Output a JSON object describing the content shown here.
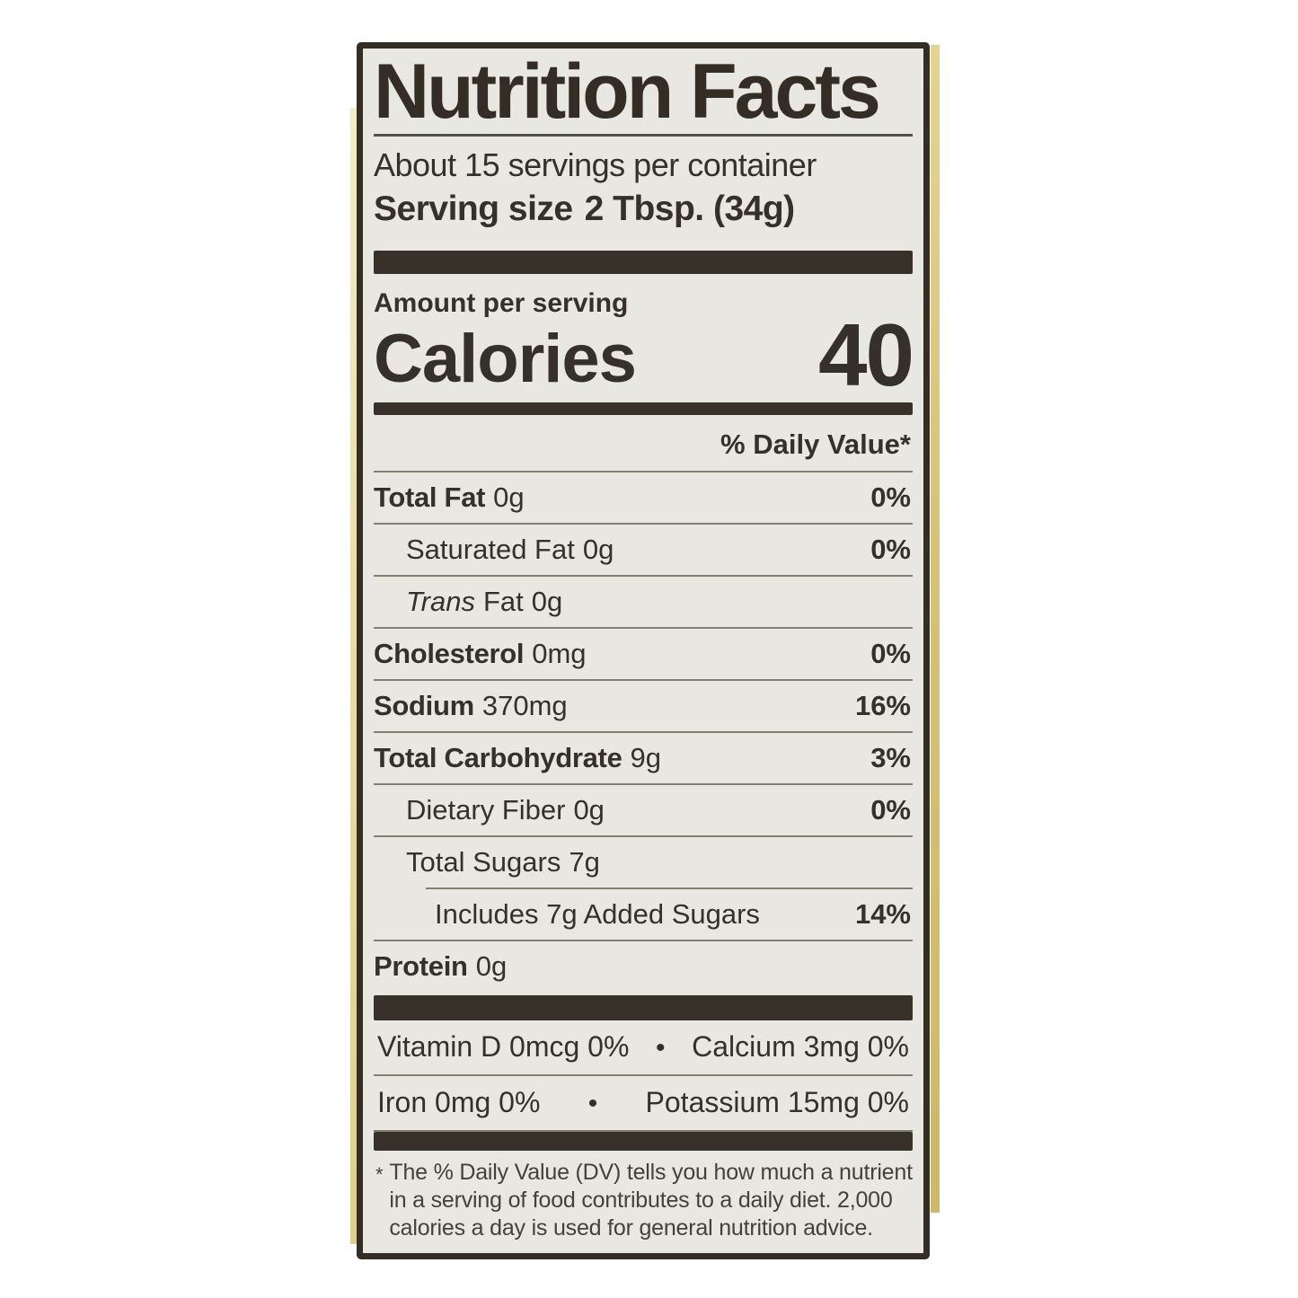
{
  "label": {
    "title": "Nutrition Facts",
    "servings_per_container": "About 15 servings per container",
    "serving_size_label": "Serving size",
    "serving_size_value": "2 Tbsp. (34g)",
    "amount_per_serving": "Amount per serving",
    "calories_label": "Calories",
    "calories_value": "40",
    "daily_value_header": "% Daily Value*",
    "nutrients": [
      {
        "name": "Total Fat",
        "amount": "0g",
        "dv": "0%"
      },
      {
        "name": "Saturated Fat",
        "amount": "0g",
        "dv": "0%"
      },
      {
        "name_italic": "Trans",
        "name": "Fat",
        "amount": "0g",
        "dv": ""
      },
      {
        "name": "Cholesterol",
        "amount": "0mg",
        "dv": "0%"
      },
      {
        "name": "Sodium",
        "amount": "370mg",
        "dv": "16%"
      },
      {
        "name": "Total Carbohydrate",
        "amount": "9g",
        "dv": "3%"
      },
      {
        "name": "Dietary Fiber",
        "amount": "0g",
        "dv": "0%"
      },
      {
        "name": "Total Sugars",
        "amount": "7g",
        "dv": ""
      },
      {
        "name": "Includes 7g Added Sugars",
        "amount": "",
        "dv": "14%"
      },
      {
        "name": "Protein",
        "amount": "0g",
        "dv": ""
      }
    ],
    "micronutrients": [
      {
        "left": "Vitamin D 0mcg 0%",
        "bullet": "•",
        "right": "Calcium 3mg 0%"
      },
      {
        "left": "Iron 0mg 0%",
        "bullet": "•",
        "right": "Potassium 15mg 0%"
      }
    ],
    "footnote_marker": "*",
    "footnote_lines": [
      "The % Daily Value (DV) tells you how much a nutrient",
      "in a serving of food contributes to a daily diet. 2,000",
      "calories a day is used for general nutrition advice."
    ]
  },
  "colors": {
    "label_background": "#e9e7e2",
    "ink": "#332d26",
    "thin_rule": "#847d72",
    "jar_gold": "#d5c277",
    "page_background": "#ffffff"
  }
}
